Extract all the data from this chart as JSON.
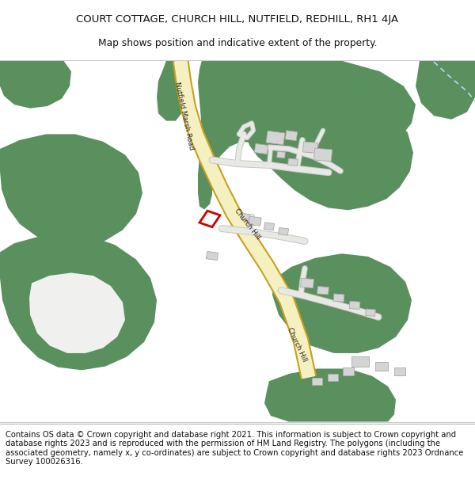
{
  "title_line1": "COURT COTTAGE, CHURCH HILL, NUTFIELD, REDHILL, RH1 4JA",
  "title_line2": "Map shows position and indicative extent of the property.",
  "footer_text": "Contains OS data © Crown copyright and database right 2021. This information is subject to Crown copyright and database rights 2023 and is reproduced with the permission of HM Land Registry. The polygons (including the associated geometry, namely x, y co-ordinates) are subject to Crown copyright and database rights 2023 Ordnance Survey 100026316.",
  "bg_color": "#ffffff",
  "map_bg": "#f0f0ee",
  "green_color": "#5a8f5e",
  "road_fill": "#f5f0c0",
  "road_edge": "#c8a020",
  "building_color": "#d4d4d4",
  "building_edge": "#aaaaaa",
  "path_color": "#e8e8e4",
  "path_edge": "#c8c8c4",
  "water_color": "#b8d8f0",
  "red_box_color": "#cc0000",
  "title_fontsize": 9.5,
  "subtitle_fontsize": 8.8,
  "footer_fontsize": 7.2,
  "road_label1": "Nutfield Marsh Road",
  "road_label2": "Church Hill",
  "road_label3": "Church Hill"
}
